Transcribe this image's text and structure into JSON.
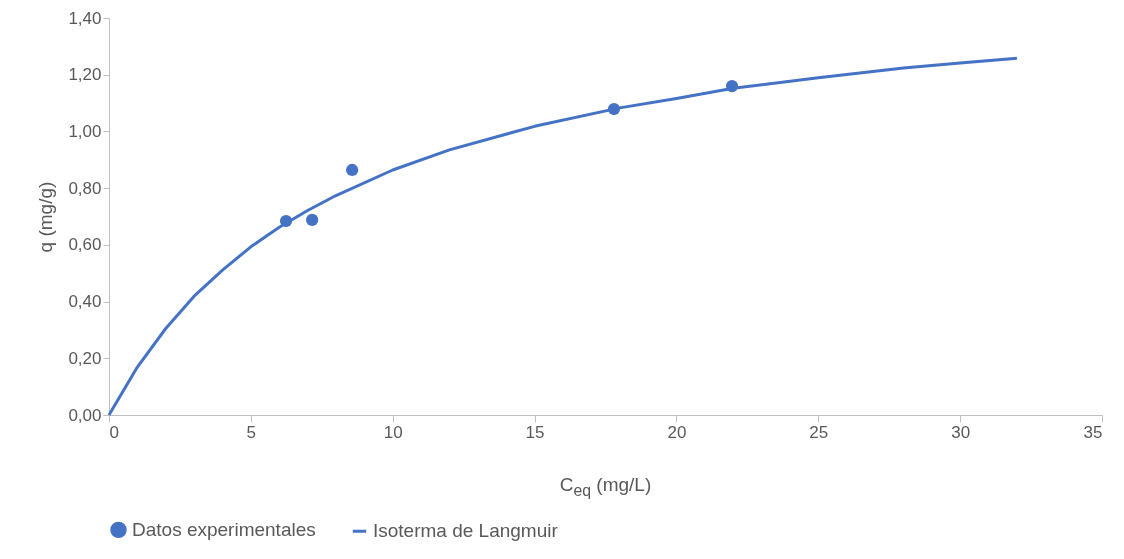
{
  "chart_data": {
    "type": "scatter",
    "xlabel": "C$_{eq}$ (mg/L)",
    "ylabel": "q (mg/g)",
    "xlim": [
      0,
      35
    ],
    "xticks": [
      0,
      5,
      10,
      15,
      20,
      25,
      30,
      35
    ],
    "ylim": [
      0,
      1.4
    ],
    "yticks": [
      {
        "value": 0,
        "label": "0,00"
      },
      {
        "value": 0.2,
        "label": "0,20"
      },
      {
        "value": 0.4,
        "label": "0,40"
      },
      {
        "value": 0.6,
        "label": "0,60"
      },
      {
        "value": 0.8,
        "label": "0,80"
      },
      {
        "value": 1.0,
        "label": "1,00"
      },
      {
        "value": 1.2,
        "label": "1,20"
      },
      {
        "value": 1.4,
        "label": "1,40"
      }
    ],
    "grid": false,
    "legend": "bottom",
    "series": [
      {
        "name": "Datos experimentales",
        "type": "scatter",
        "marker": "circle",
        "color": "#4472c4",
        "x": [
          6.24,
          7.16,
          8.57,
          17.8,
          21.96
        ],
        "values": [
          0.684,
          0.688,
          0.864,
          1.079,
          1.16
        ]
      },
      {
        "name": "Isoterma de Langmuir",
        "type": "line",
        "marker": "none",
        "line_style": "solid",
        "color": "#4472c4",
        "x": [
          0,
          1,
          2,
          3,
          4,
          5,
          6,
          7,
          8,
          10,
          12,
          15,
          18,
          20,
          22,
          25,
          28,
          30,
          32
        ],
        "values": [
          0,
          0.169,
          0.305,
          0.419,
          0.511,
          0.593,
          0.662,
          0.721,
          0.774,
          0.864,
          0.935,
          1.018,
          1.083,
          1.116,
          1.152,
          1.189,
          1.224,
          1.241,
          1.258
        ]
      }
    ]
  }
}
